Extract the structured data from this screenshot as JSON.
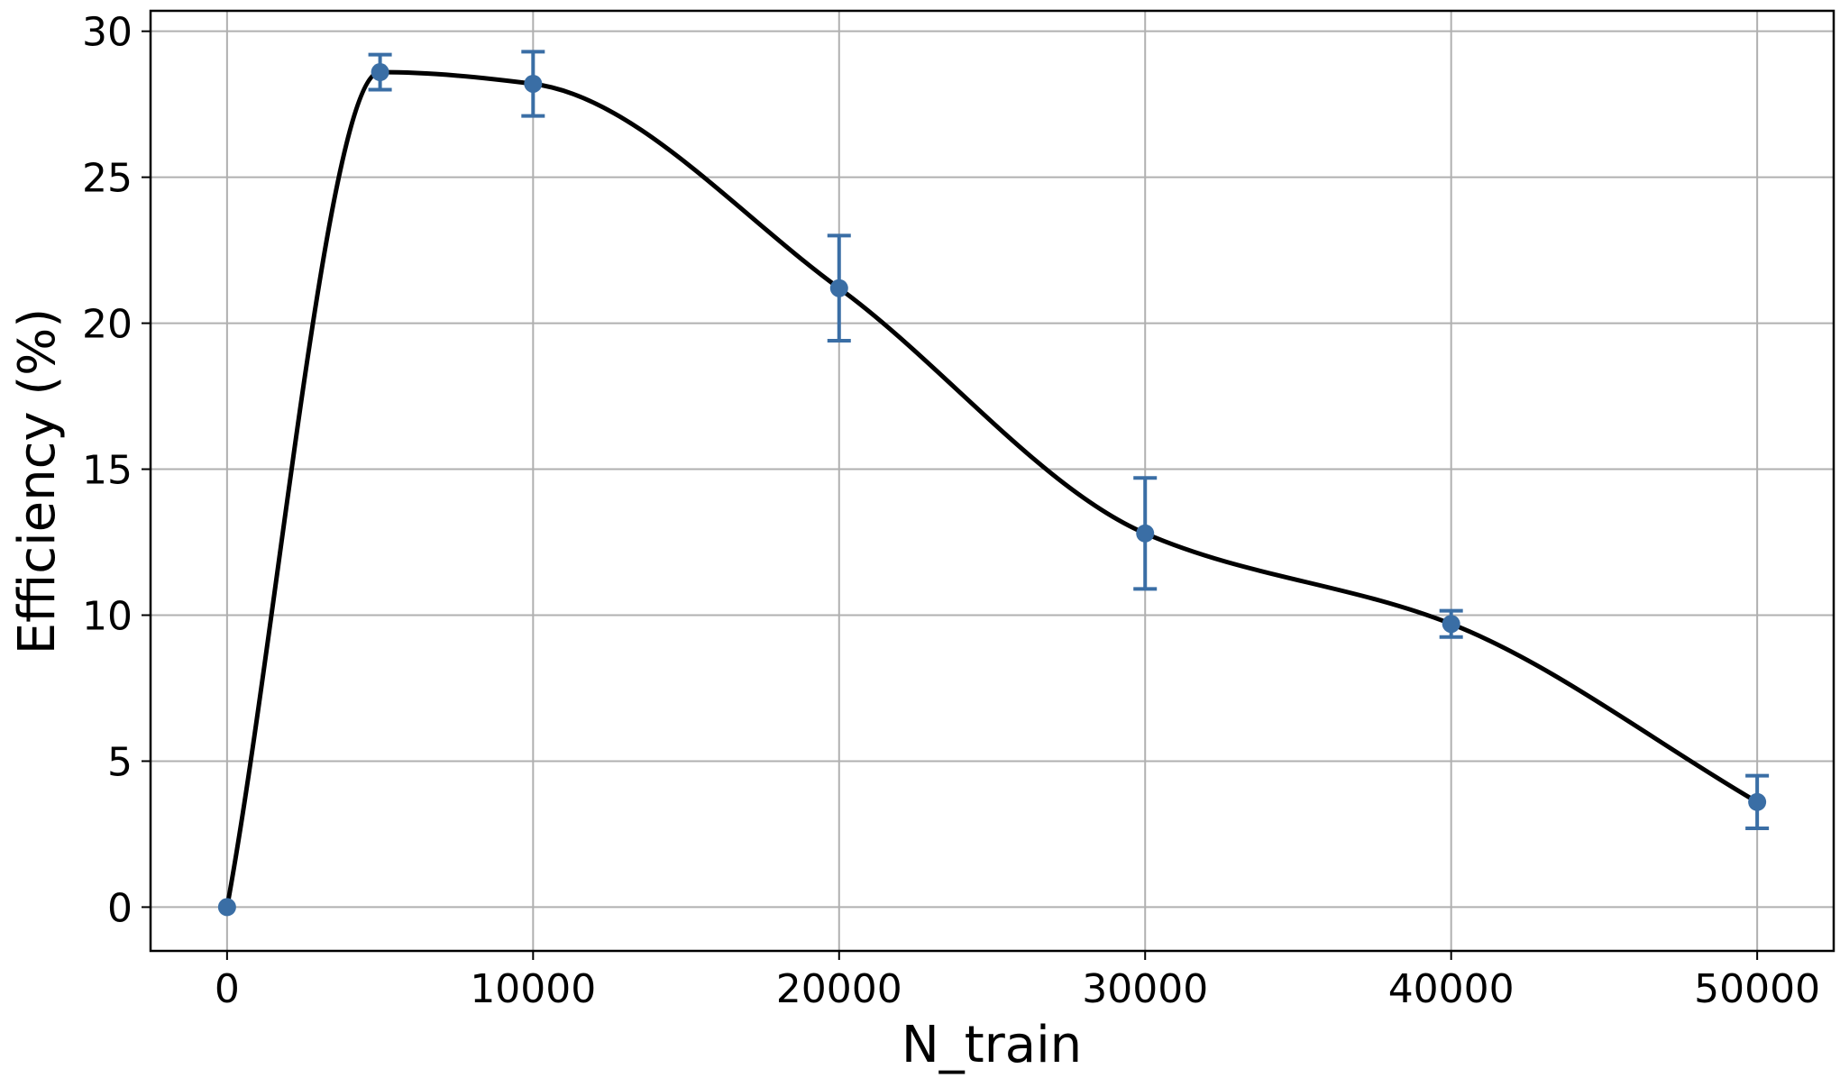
{
  "chart_data": {
    "type": "line",
    "xlabel": "N_train",
    "ylabel": "Efficiency (%)",
    "xlim": [
      -2500,
      52500
    ],
    "ylim": [
      -1.5,
      30.7
    ],
    "xticks": [
      0,
      10000,
      20000,
      30000,
      40000,
      50000
    ],
    "yticks": [
      0,
      5,
      10,
      15,
      20,
      25,
      30
    ],
    "grid": true,
    "series": [
      {
        "x": [
          0,
          5000,
          10000,
          20000,
          30000,
          40000,
          50000
        ],
        "y": [
          0,
          28.6,
          28.2,
          21.2,
          12.8,
          9.7,
          3.6
        ],
        "yerr": [
          0,
          0.6,
          1.1,
          1.8,
          1.9,
          0.45,
          0.9
        ],
        "marker_color": "#3a6ea5",
        "errorbar_color": "#3a6ea5",
        "curve_color": "#000000",
        "curve": "smooth"
      }
    ]
  }
}
